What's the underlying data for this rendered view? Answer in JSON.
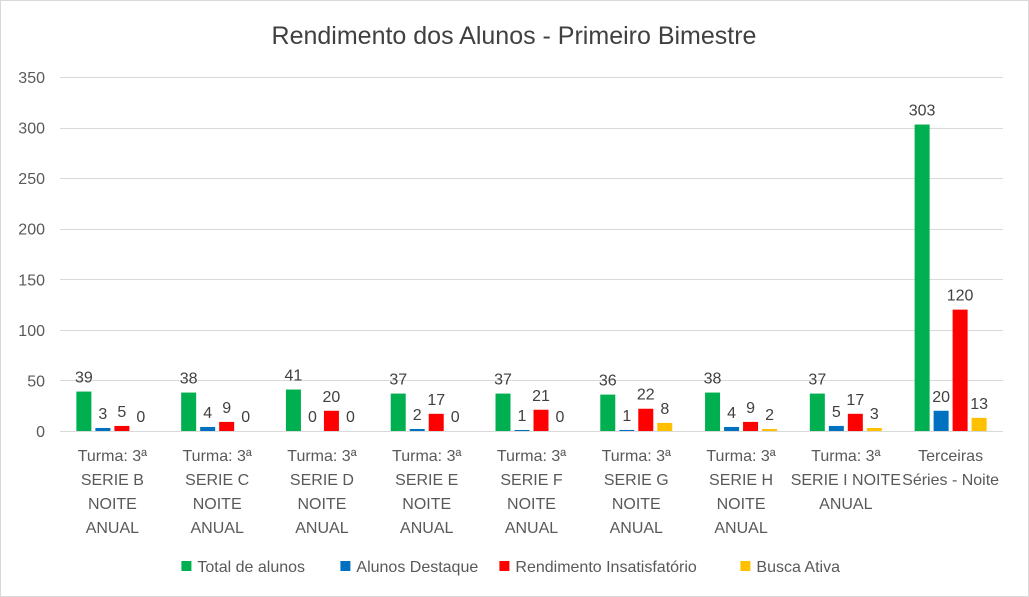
{
  "chart_data": {
    "type": "bar",
    "title": "Rendimento dos Alunos - Primeiro Bimestre",
    "xlabel": "",
    "ylabel": "",
    "ylim": [
      0,
      350
    ],
    "yticks": [
      0,
      50,
      100,
      150,
      200,
      250,
      300,
      350
    ],
    "grid": true,
    "legend_position": "bottom",
    "categories": [
      [
        "Turma:  3ª",
        "SERIE B",
        "NOITE",
        "ANUAL"
      ],
      [
        "Turma:  3ª",
        "SERIE C",
        "NOITE",
        "ANUAL"
      ],
      [
        "Turma:  3ª",
        "SERIE D",
        "NOITE",
        "ANUAL"
      ],
      [
        "Turma:  3ª",
        "SERIE E",
        "NOITE",
        "ANUAL"
      ],
      [
        "Turma:  3ª",
        "SERIE F",
        "NOITE",
        "ANUAL"
      ],
      [
        "Turma:  3ª",
        "SERIE G",
        "NOITE",
        "ANUAL"
      ],
      [
        "Turma:  3ª",
        "SERIE H",
        "NOITE",
        "ANUAL"
      ],
      [
        "Turma:  3ª",
        "SERIE I NOITE",
        "ANUAL"
      ],
      [
        "Terceiras",
        "Séries - Noite"
      ]
    ],
    "series": [
      {
        "name": "Total de alunos",
        "color": "#00b050",
        "values": [
          39,
          38,
          41,
          37,
          37,
          36,
          38,
          37,
          303
        ],
        "labels": [
          "39",
          "38",
          "41",
          "37",
          "37",
          "36",
          "38",
          "37",
          "303"
        ]
      },
      {
        "name": "Alunos Destaque",
        "color": "#0070c0",
        "values": [
          3,
          4,
          0,
          2,
          1,
          1,
          4,
          5,
          20
        ],
        "labels": [
          "3",
          "4",
          "0",
          "2",
          "1",
          "1",
          "4",
          "5",
          "20"
        ]
      },
      {
        "name": "Rendimento Insatisfatório",
        "color": "#ff0000",
        "values": [
          5,
          9,
          20,
          17,
          21,
          22,
          9,
          17,
          120
        ],
        "labels": [
          "5",
          "9",
          "20",
          "17",
          "21",
          "22",
          "9",
          "17",
          "120"
        ]
      },
      {
        "name": "Busca Ativa",
        "color": "#ffc000",
        "values": [
          0,
          0,
          0,
          0,
          0,
          8,
          2,
          3,
          13
        ],
        "labels": [
          "0",
          "0",
          "0",
          "0",
          "0",
          "8",
          "2",
          "3",
          "13"
        ]
      }
    ]
  }
}
